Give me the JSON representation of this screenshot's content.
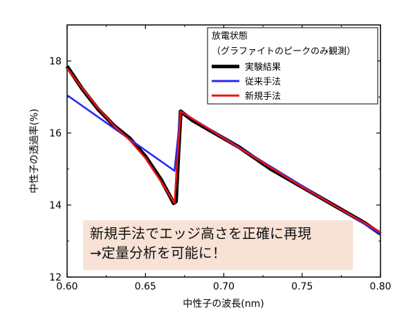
{
  "chart_data": {
    "type": "line",
    "title": "",
    "xlabel": "中性子の波長(nm)",
    "ylabel": "中性子の透過率(%)",
    "xlim": [
      0.6,
      0.8
    ],
    "ylim": [
      12,
      19
    ],
    "x_ticks": [
      0.6,
      0.65,
      0.7,
      0.75,
      0.8
    ],
    "x_tick_labels": [
      "0.60",
      "0.65",
      "0.70",
      "0.75",
      "0.80"
    ],
    "y_ticks": [
      12,
      14,
      16,
      18
    ],
    "y_tick_labels": [
      "12",
      "14",
      "16",
      "18"
    ],
    "grid": false,
    "legend": {
      "placement": "top-right",
      "title_lines": [
        "放電状態",
        "（グラファイトのピークのみ観測）"
      ]
    },
    "series": [
      {
        "name": "実験結果",
        "color": "#000000",
        "points": [
          [
            0.6,
            17.85
          ],
          [
            0.61,
            17.2
          ],
          [
            0.62,
            16.65
          ],
          [
            0.63,
            16.2
          ],
          [
            0.64,
            15.85
          ],
          [
            0.65,
            15.35
          ],
          [
            0.66,
            14.7
          ],
          [
            0.665,
            14.3
          ],
          [
            0.668,
            14.05
          ],
          [
            0.6695,
            14.1
          ],
          [
            0.671,
            15.4
          ],
          [
            0.6725,
            16.6
          ],
          [
            0.68,
            16.35
          ],
          [
            0.69,
            16.1
          ],
          [
            0.7,
            15.85
          ],
          [
            0.71,
            15.6
          ],
          [
            0.72,
            15.3
          ],
          [
            0.73,
            15.0
          ],
          [
            0.74,
            14.75
          ],
          [
            0.75,
            14.5
          ],
          [
            0.76,
            14.25
          ],
          [
            0.77,
            14.0
          ],
          [
            0.78,
            13.75
          ],
          [
            0.79,
            13.5
          ],
          [
            0.8,
            13.2
          ]
        ]
      },
      {
        "name": "従来手法",
        "color": "#2a2aee",
        "points": [
          [
            0.6,
            17.05
          ],
          [
            0.6685,
            14.95
          ],
          [
            0.6725,
            16.6
          ],
          [
            0.8,
            13.2
          ]
        ]
      },
      {
        "name": "新規手法",
        "color": "#ee1111",
        "points": [
          [
            0.6,
            17.8
          ],
          [
            0.61,
            17.22
          ],
          [
            0.62,
            16.68
          ],
          [
            0.63,
            16.2
          ],
          [
            0.64,
            15.8
          ],
          [
            0.65,
            15.3
          ],
          [
            0.66,
            14.65
          ],
          [
            0.6685,
            14.05
          ],
          [
            0.6725,
            16.6
          ],
          [
            0.7,
            15.85
          ],
          [
            0.75,
            14.5
          ],
          [
            0.8,
            13.25
          ]
        ]
      }
    ],
    "annotation": {
      "line1": "新規手法でエッジ高さを正確に再現",
      "line2": "→定量分析を可能に！",
      "background": "#f7e2d5"
    }
  }
}
